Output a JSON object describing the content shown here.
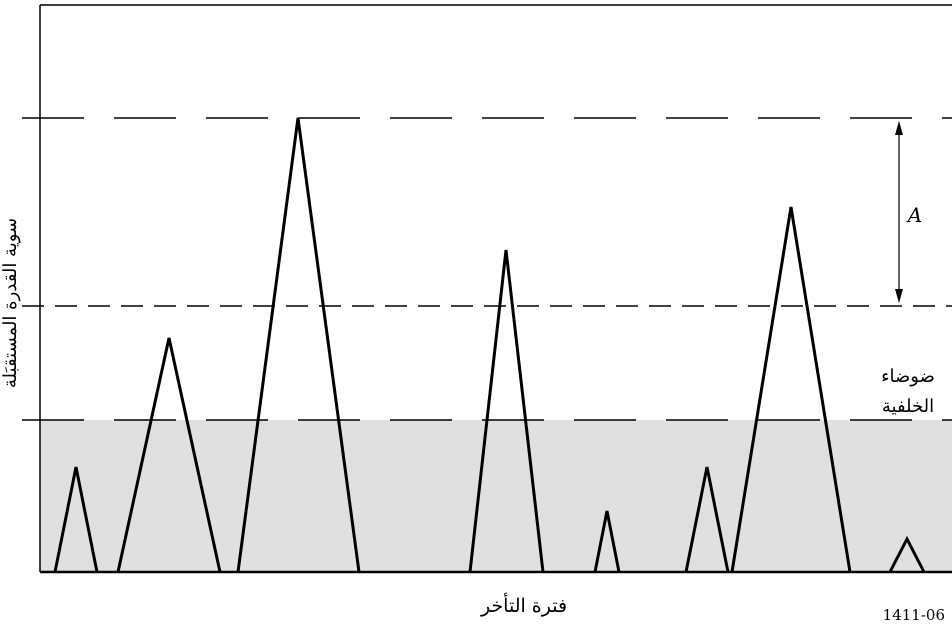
{
  "y_axis_label": "سوية القدرة المستقبَلة",
  "x_axis_label": "فترة التأخر",
  "amplitude_label": "A",
  "background_noise_label": [
    "ضوضاء",
    "الخلفية"
  ],
  "figure_id": "1411-06",
  "colors": {
    "noise_region": "#e0e0e0",
    "line": "#000000"
  }
}
